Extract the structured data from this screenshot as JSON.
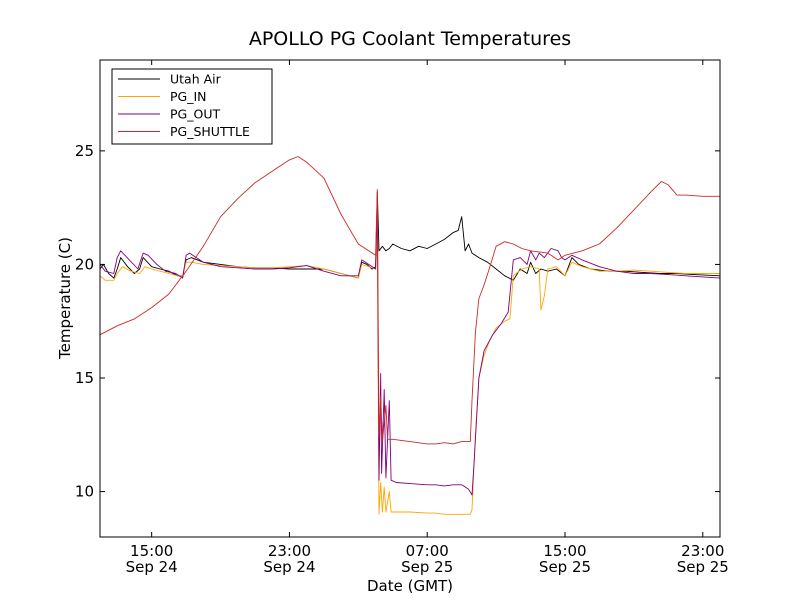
{
  "chart_data": {
    "type": "line",
    "title": "APOLLO PG Coolant Temperatures",
    "xlabel": "Date (GMT)",
    "ylabel": "Temperature (C)",
    "x_unit": "hours since 2025-09-24 00:00 GMT (day/hour on ticks)",
    "xlim": [
      12.0,
      48.0
    ],
    "ylim": [
      8.0,
      29.0
    ],
    "x_ticks": [
      {
        "x": 15,
        "time": "15:00",
        "date": "Sep 24"
      },
      {
        "x": 23,
        "time": "23:00",
        "date": "Sep 24"
      },
      {
        "x": 31,
        "time": "07:00",
        "date": "Sep 25"
      },
      {
        "x": 39,
        "time": "15:00",
        "date": "Sep 25"
      },
      {
        "x": 47,
        "time": "23:00",
        "date": "Sep 25"
      }
    ],
    "y_ticks": [
      10,
      15,
      20,
      25
    ],
    "legend_position": "top-left",
    "series": [
      {
        "name": "Utah Air",
        "color": "#000000",
        "points": [
          [
            12.0,
            19.8
          ],
          [
            12.2,
            20.0
          ],
          [
            12.5,
            19.6
          ],
          [
            12.8,
            19.4
          ],
          [
            13.0,
            19.8
          ],
          [
            13.2,
            20.3
          ],
          [
            13.6,
            19.9
          ],
          [
            14.0,
            19.6
          ],
          [
            14.3,
            19.8
          ],
          [
            14.5,
            20.3
          ],
          [
            15.0,
            19.9
          ],
          [
            15.5,
            19.8
          ],
          [
            16.0,
            19.7
          ],
          [
            16.5,
            19.5
          ],
          [
            16.8,
            19.5
          ],
          [
            17.0,
            20.2
          ],
          [
            17.3,
            20.3
          ],
          [
            18.0,
            20.1
          ],
          [
            19.0,
            20.0
          ],
          [
            20.0,
            19.9
          ],
          [
            21.0,
            19.85
          ],
          [
            22.0,
            19.85
          ],
          [
            23.0,
            19.8
          ],
          [
            24.0,
            19.8
          ],
          [
            25.0,
            19.8
          ],
          [
            26.0,
            19.6
          ],
          [
            27.0,
            19.4
          ],
          [
            27.2,
            20.1
          ],
          [
            27.5,
            20.0
          ],
          [
            27.8,
            19.8
          ],
          [
            28.0,
            19.9
          ],
          [
            28.1,
            23.2
          ],
          [
            28.2,
            20.6
          ],
          [
            28.4,
            20.8
          ],
          [
            28.6,
            20.6
          ],
          [
            28.8,
            20.7
          ],
          [
            29.0,
            20.9
          ],
          [
            29.5,
            20.7
          ],
          [
            30.0,
            20.6
          ],
          [
            30.5,
            20.8
          ],
          [
            31.0,
            20.7
          ],
          [
            31.5,
            20.9
          ],
          [
            32.0,
            21.1
          ],
          [
            32.5,
            21.4
          ],
          [
            32.8,
            21.5
          ],
          [
            33.0,
            22.1
          ],
          [
            33.2,
            20.6
          ],
          [
            33.4,
            20.9
          ],
          [
            33.6,
            20.5
          ],
          [
            34.0,
            20.3
          ],
          [
            34.5,
            20.1
          ],
          [
            35.0,
            19.8
          ],
          [
            35.5,
            19.5
          ],
          [
            36.0,
            19.3
          ],
          [
            36.4,
            19.8
          ],
          [
            36.8,
            19.6
          ],
          [
            37.0,
            20.1
          ],
          [
            37.3,
            19.6
          ],
          [
            37.6,
            19.8
          ],
          [
            38.0,
            19.7
          ],
          [
            38.5,
            19.8
          ],
          [
            39.0,
            19.5
          ],
          [
            39.4,
            20.3
          ],
          [
            39.8,
            20.0
          ],
          [
            40.5,
            19.8
          ],
          [
            41.5,
            19.7
          ],
          [
            42.5,
            19.7
          ],
          [
            43.5,
            19.65
          ],
          [
            44.5,
            19.6
          ],
          [
            45.5,
            19.6
          ],
          [
            46.5,
            19.55
          ],
          [
            48.0,
            19.5
          ]
        ]
      },
      {
        "name": "PG_IN",
        "color": "#ffa500",
        "points": [
          [
            12.0,
            19.5
          ],
          [
            12.3,
            19.3
          ],
          [
            12.8,
            19.3
          ],
          [
            13.0,
            19.6
          ],
          [
            13.3,
            19.9
          ],
          [
            13.8,
            19.7
          ],
          [
            14.3,
            19.6
          ],
          [
            14.6,
            19.9
          ],
          [
            15.0,
            19.8
          ],
          [
            15.5,
            19.7
          ],
          [
            16.0,
            19.6
          ],
          [
            16.5,
            19.5
          ],
          [
            16.8,
            19.5
          ],
          [
            17.0,
            20.1
          ],
          [
            17.3,
            20.1
          ],
          [
            18.0,
            20.0
          ],
          [
            19.0,
            19.95
          ],
          [
            20.0,
            19.9
          ],
          [
            21.0,
            19.85
          ],
          [
            22.0,
            19.85
          ],
          [
            23.0,
            19.9
          ],
          [
            24.0,
            19.95
          ],
          [
            25.0,
            19.8
          ],
          [
            26.0,
            19.6
          ],
          [
            27.0,
            19.4
          ],
          [
            27.2,
            20.0
          ],
          [
            27.6,
            19.9
          ],
          [
            28.0,
            19.8
          ],
          [
            28.1,
            21.0
          ],
          [
            28.2,
            9.0
          ],
          [
            28.3,
            10.4
          ],
          [
            28.4,
            9.1
          ],
          [
            28.5,
            10.2
          ],
          [
            28.6,
            9.1
          ],
          [
            28.8,
            10.0
          ],
          [
            28.9,
            9.1
          ],
          [
            29.2,
            9.1
          ],
          [
            30.0,
            9.1
          ],
          [
            31.0,
            9.05
          ],
          [
            31.5,
            9.05
          ],
          [
            32.0,
            9.0
          ],
          [
            32.5,
            9.0
          ],
          [
            33.0,
            9.0
          ],
          [
            33.5,
            9.0
          ],
          [
            33.6,
            9.2
          ],
          [
            33.8,
            12.5
          ],
          [
            34.0,
            15.0
          ],
          [
            34.3,
            16.0
          ],
          [
            34.6,
            16.6
          ],
          [
            35.0,
            17.2
          ],
          [
            35.5,
            17.5
          ],
          [
            35.8,
            17.6
          ],
          [
            36.0,
            19.5
          ],
          [
            36.5,
            19.8
          ],
          [
            37.0,
            19.9
          ],
          [
            37.5,
            19.8
          ],
          [
            37.6,
            18.0
          ],
          [
            37.8,
            18.6
          ],
          [
            38.0,
            19.8
          ],
          [
            38.5,
            19.9
          ],
          [
            39.0,
            19.5
          ],
          [
            39.4,
            20.1
          ],
          [
            40.0,
            19.9
          ],
          [
            41.0,
            19.7
          ],
          [
            42.0,
            19.7
          ],
          [
            43.0,
            19.75
          ],
          [
            44.0,
            19.7
          ],
          [
            45.0,
            19.65
          ],
          [
            46.0,
            19.6
          ],
          [
            47.0,
            19.6
          ],
          [
            48.0,
            19.6
          ]
        ]
      },
      {
        "name": "PG_OUT",
        "color": "#800080",
        "points": [
          [
            12.0,
            20.0
          ],
          [
            12.3,
            19.7
          ],
          [
            12.8,
            19.6
          ],
          [
            13.0,
            20.3
          ],
          [
            13.2,
            20.6
          ],
          [
            13.7,
            20.2
          ],
          [
            14.2,
            19.8
          ],
          [
            14.5,
            20.5
          ],
          [
            14.8,
            20.4
          ],
          [
            15.3,
            20.0
          ],
          [
            15.8,
            19.7
          ],
          [
            16.4,
            19.6
          ],
          [
            16.8,
            19.4
          ],
          [
            17.0,
            20.4
          ],
          [
            17.2,
            20.5
          ],
          [
            18.0,
            20.1
          ],
          [
            19.0,
            19.9
          ],
          [
            20.0,
            19.85
          ],
          [
            21.0,
            19.8
          ],
          [
            22.0,
            19.8
          ],
          [
            23.0,
            19.85
          ],
          [
            24.0,
            19.95
          ],
          [
            25.0,
            19.7
          ],
          [
            26.0,
            19.5
          ],
          [
            27.0,
            19.5
          ],
          [
            27.2,
            20.2
          ],
          [
            27.6,
            20.0
          ],
          [
            28.0,
            19.8
          ],
          [
            28.1,
            22.5
          ],
          [
            28.2,
            10.5
          ],
          [
            28.3,
            15.2
          ],
          [
            28.35,
            10.8
          ],
          [
            28.5,
            14.5
          ],
          [
            28.6,
            10.6
          ],
          [
            28.8,
            14.0
          ],
          [
            28.9,
            10.5
          ],
          [
            29.2,
            10.4
          ],
          [
            30.0,
            10.35
          ],
          [
            31.0,
            10.3
          ],
          [
            31.5,
            10.3
          ],
          [
            32.0,
            10.25
          ],
          [
            32.5,
            10.3
          ],
          [
            33.0,
            10.3
          ],
          [
            33.4,
            10.1
          ],
          [
            33.6,
            9.85
          ],
          [
            33.7,
            11.0
          ],
          [
            34.0,
            15.0
          ],
          [
            34.3,
            16.2
          ],
          [
            34.8,
            16.9
          ],
          [
            35.3,
            17.4
          ],
          [
            35.7,
            17.9
          ],
          [
            36.0,
            20.2
          ],
          [
            36.4,
            20.3
          ],
          [
            36.8,
            20.0
          ],
          [
            37.0,
            20.6
          ],
          [
            37.3,
            20.2
          ],
          [
            37.5,
            20.5
          ],
          [
            37.8,
            20.3
          ],
          [
            38.2,
            20.7
          ],
          [
            38.6,
            20.6
          ],
          [
            38.8,
            20.3
          ],
          [
            39.0,
            20.2
          ],
          [
            39.4,
            20.4
          ],
          [
            40.0,
            20.2
          ],
          [
            41.0,
            19.9
          ],
          [
            42.0,
            19.7
          ],
          [
            43.0,
            19.6
          ],
          [
            44.0,
            19.6
          ],
          [
            45.0,
            19.55
          ],
          [
            46.0,
            19.5
          ],
          [
            47.0,
            19.45
          ],
          [
            48.0,
            19.4
          ]
        ]
      },
      {
        "name": "PG_SHUTTLE",
        "color": "#cc2a2a",
        "points": [
          [
            12.0,
            16.9
          ],
          [
            12.5,
            17.1
          ],
          [
            13.0,
            17.3
          ],
          [
            14.0,
            17.6
          ],
          [
            15.0,
            18.1
          ],
          [
            16.0,
            18.7
          ],
          [
            17.0,
            19.7
          ],
          [
            18.0,
            20.8
          ],
          [
            19.0,
            22.1
          ],
          [
            20.0,
            22.9
          ],
          [
            21.0,
            23.6
          ],
          [
            22.0,
            24.1
          ],
          [
            23.0,
            24.6
          ],
          [
            23.5,
            24.75
          ],
          [
            24.0,
            24.5
          ],
          [
            25.0,
            23.8
          ],
          [
            26.0,
            22.2
          ],
          [
            27.0,
            20.9
          ],
          [
            28.0,
            20.4
          ],
          [
            28.1,
            23.3
          ],
          [
            28.2,
            12.5
          ],
          [
            28.3,
            14.2
          ],
          [
            28.4,
            12.2
          ],
          [
            28.6,
            13.8
          ],
          [
            28.7,
            12.3
          ],
          [
            29.0,
            12.3
          ],
          [
            30.0,
            12.2
          ],
          [
            31.0,
            12.1
          ],
          [
            31.5,
            12.1
          ],
          [
            32.0,
            12.15
          ],
          [
            32.5,
            12.1
          ],
          [
            33.0,
            12.2
          ],
          [
            33.5,
            12.2
          ],
          [
            33.6,
            14.0
          ],
          [
            33.8,
            17.0
          ],
          [
            34.0,
            18.5
          ],
          [
            34.3,
            19.1
          ],
          [
            34.6,
            19.8
          ],
          [
            35.0,
            20.8
          ],
          [
            35.5,
            21.0
          ],
          [
            36.0,
            20.9
          ],
          [
            36.5,
            20.7
          ],
          [
            37.0,
            20.6
          ],
          [
            38.0,
            20.5
          ],
          [
            38.6,
            20.2
          ],
          [
            39.0,
            20.4
          ],
          [
            40.0,
            20.6
          ],
          [
            41.0,
            20.9
          ],
          [
            42.0,
            21.6
          ],
          [
            43.0,
            22.4
          ],
          [
            44.0,
            23.2
          ],
          [
            44.6,
            23.65
          ],
          [
            45.0,
            23.5
          ],
          [
            45.5,
            23.05
          ],
          [
            46.0,
            23.05
          ],
          [
            47.0,
            23.0
          ],
          [
            48.0,
            23.0
          ]
        ]
      }
    ]
  }
}
